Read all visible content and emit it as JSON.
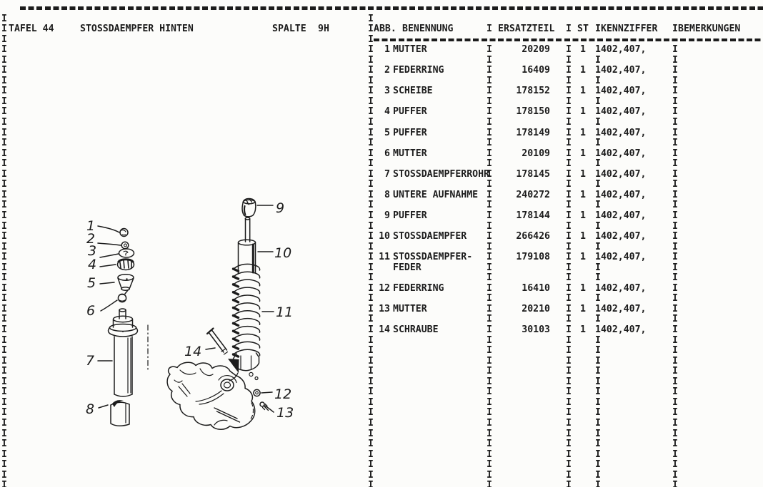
{
  "document": {
    "colors": {
      "ink": "#1c1c1c",
      "paper": "#fcfcfa"
    },
    "left_panel": {
      "border_char": "I",
      "tafel_label": "TAFEL 44",
      "title": "STOSSDAEMPFER HINTEN",
      "spalte_label": "SPALTE",
      "spalte_value": "9H"
    },
    "table": {
      "border_char": "I",
      "headers": {
        "abb": "ABB.",
        "benennung": "BENENNUNG",
        "ersatzteil": "ERSATZTEIL",
        "st": "ST",
        "kennziffer": "KENNZIFFER",
        "bemerkungen": "BEMERKUNGEN"
      },
      "rows": [
        {
          "num": "1",
          "name": "MUTTER",
          "name2": "",
          "part": "20209",
          "qty": "1",
          "kenn": "1402,407,"
        },
        {
          "num": "2",
          "name": "FEDERRING",
          "name2": "",
          "part": "16409",
          "qty": "1",
          "kenn": "1402,407,"
        },
        {
          "num": "3",
          "name": "SCHEIBE",
          "name2": "",
          "part": "178152",
          "qty": "1",
          "kenn": "1402,407,"
        },
        {
          "num": "4",
          "name": "PUFFER",
          "name2": "",
          "part": "178150",
          "qty": "1",
          "kenn": "1402,407,"
        },
        {
          "num": "5",
          "name": "PUFFER",
          "name2": "",
          "part": "178149",
          "qty": "1",
          "kenn": "1402,407,"
        },
        {
          "num": "6",
          "name": "MUTTER",
          "name2": "",
          "part": "20109",
          "qty": "1",
          "kenn": "1402,407,"
        },
        {
          "num": "7",
          "name": "STOSSDAEMPFERROHR",
          "name2": "",
          "part": "178145",
          "qty": "1",
          "kenn": "1402,407,"
        },
        {
          "num": "8",
          "name": "UNTERE AUFNAHME",
          "name2": "",
          "part": "240272",
          "qty": "1",
          "kenn": "1402,407,"
        },
        {
          "num": "9",
          "name": "PUFFER",
          "name2": "",
          "part": "178144",
          "qty": "1",
          "kenn": "1402,407,"
        },
        {
          "num": "10",
          "name": "STOSSDAEMPFER",
          "name2": "",
          "part": "266426",
          "qty": "1",
          "kenn": "1402,407,"
        },
        {
          "num": "11",
          "name": "STOSSDAEMPFER-",
          "name2": "FEDER",
          "part": "179108",
          "qty": "1",
          "kenn": "1402,407,"
        },
        {
          "num": "12",
          "name": "FEDERRING",
          "name2": "",
          "part": "16410",
          "qty": "1",
          "kenn": "1402,407,"
        },
        {
          "num": "13",
          "name": "MUTTER",
          "name2": "",
          "part": "20210",
          "qty": "1",
          "kenn": "1402,407,"
        },
        {
          "num": "14",
          "name": "SCHRAUBE",
          "name2": "",
          "part": "30103",
          "qty": "1",
          "kenn": "1402,407,"
        }
      ],
      "empty_trailing_rows": 14
    },
    "diagram": {
      "callouts": [
        "1",
        "2",
        "3",
        "4",
        "5",
        "6",
        "7",
        "8",
        "9",
        "10",
        "11",
        "12",
        "13",
        "14"
      ]
    }
  }
}
